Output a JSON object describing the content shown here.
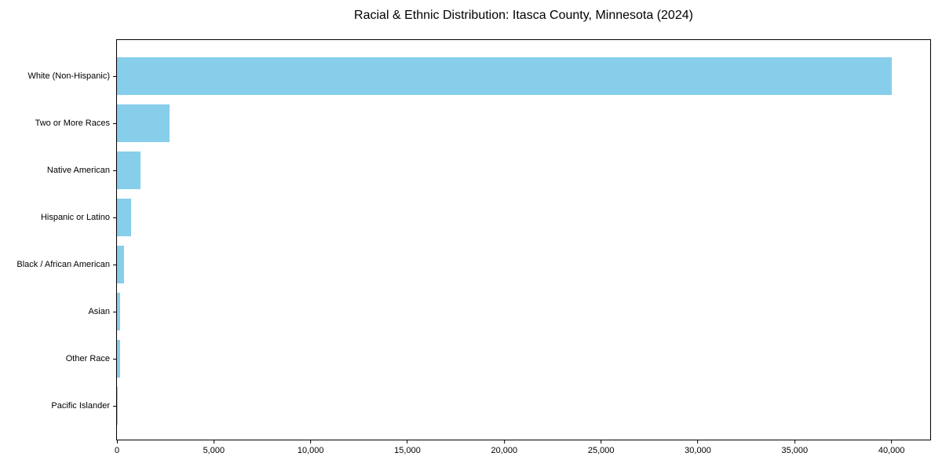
{
  "chart_data": {
    "type": "bar",
    "orientation": "horizontal",
    "title": "Racial & Ethnic Distribution: Itasca County, Minnesota (2024)",
    "categories": [
      "White (Non-Hispanic)",
      "Two or More Races",
      "Native American",
      "Hispanic or Latino",
      "Black / African American",
      "Asian",
      "Other Race",
      "Pacific Islander"
    ],
    "values": [
      40000,
      2700,
      1200,
      730,
      380,
      180,
      150,
      15
    ],
    "xlabel": "",
    "ylabel": "",
    "xlim": [
      0,
      42000
    ],
    "x_ticks": [
      0,
      5000,
      10000,
      15000,
      20000,
      25000,
      30000,
      35000,
      40000
    ],
    "x_tick_labels": [
      "0",
      "5,000",
      "10,000",
      "15,000",
      "20,000",
      "25,000",
      "30,000",
      "35,000",
      "40,000"
    ],
    "bar_color": "#87CEEB",
    "axis_color": "#000000",
    "background_color": "#ffffff",
    "grid": false,
    "legend_position": "none"
  }
}
